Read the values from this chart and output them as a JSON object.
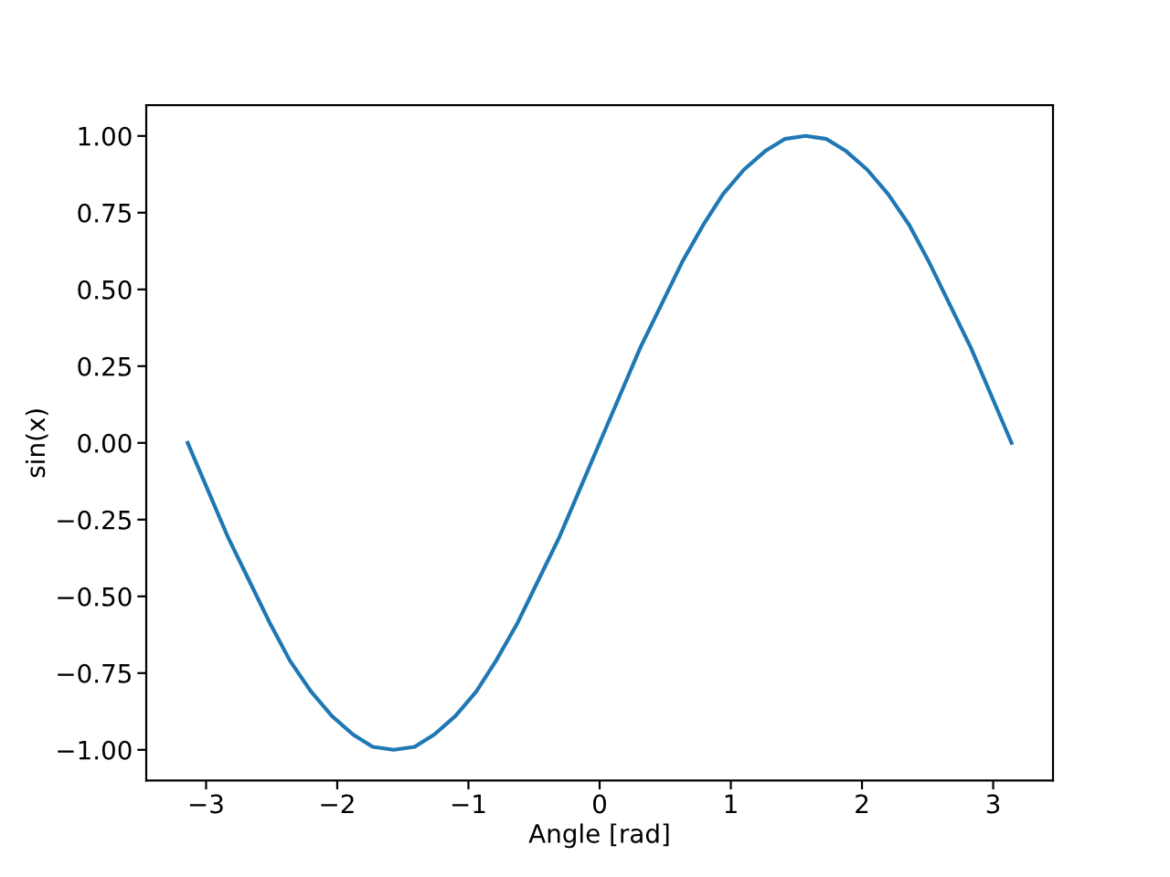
{
  "chart_data": {
    "type": "line",
    "xlabel": "Angle [rad]",
    "ylabel": "sin(x)",
    "x": [
      -3.14,
      -2.98,
      -2.83,
      -2.67,
      -2.51,
      -2.36,
      -2.2,
      -2.04,
      -1.88,
      -1.73,
      -1.57,
      -1.41,
      -1.26,
      -1.1,
      -0.94,
      -0.79,
      -0.63,
      -0.47,
      -0.31,
      -0.16,
      0,
      0.16,
      0.31,
      0.47,
      0.63,
      0.79,
      0.94,
      1.1,
      1.26,
      1.41,
      1.57,
      1.73,
      1.88,
      2.04,
      2.2,
      2.36,
      2.51,
      2.67,
      2.83,
      2.98,
      3.14
    ],
    "series": [
      {
        "color": "#1f77b4",
        "values": [
          0,
          -0.16,
          -0.31,
          -0.45,
          -0.59,
          -0.71,
          -0.81,
          -0.89,
          -0.95,
          -0.99,
          -1,
          -0.99,
          -0.95,
          -0.89,
          -0.81,
          -0.71,
          -0.59,
          -0.45,
          -0.31,
          -0.16,
          0,
          0.16,
          0.31,
          0.45,
          0.59,
          0.71,
          0.81,
          0.89,
          0.95,
          0.99,
          1,
          0.99,
          0.95,
          0.89,
          0.81,
          0.71,
          0.59,
          0.45,
          0.31,
          0.16,
          0
        ]
      }
    ],
    "xlim": [
      -3.456,
      3.456
    ],
    "ylim": [
      -1.1,
      1.1
    ],
    "xticks": [
      {
        "value": -3,
        "label": "−3"
      },
      {
        "value": -2,
        "label": "−2"
      },
      {
        "value": -1,
        "label": "−1"
      },
      0,
      1,
      2,
      3
    ],
    "yticks": [
      {
        "value": -1,
        "label": "−1.00"
      },
      {
        "value": -0.75,
        "label": "−0.75"
      },
      {
        "value": -0.5,
        "label": "−0.50"
      },
      {
        "value": -0.25,
        "label": "−0.25"
      },
      {
        "value": 0,
        "label": "0.00"
      },
      {
        "value": 0.25,
        "label": "0.25"
      },
      {
        "value": 0.5,
        "label": "0.50"
      },
      {
        "value": 0.75,
        "label": "0.75"
      },
      {
        "value": 1,
        "label": "1.00"
      }
    ],
    "grid": false,
    "legend": false,
    "line_style": "solid",
    "marker": "none"
  }
}
